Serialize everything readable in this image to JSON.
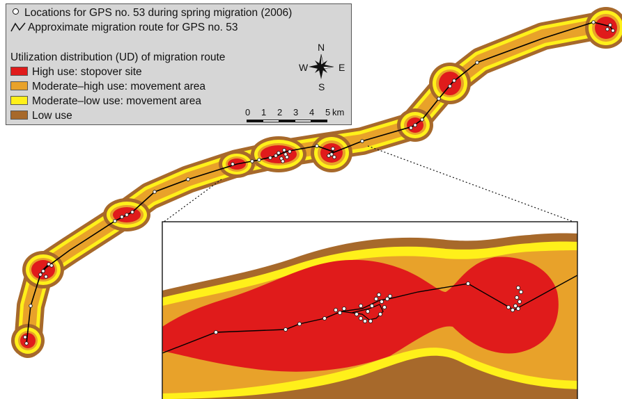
{
  "legend": {
    "locations_label": "Locations for GPS no. 53 during spring migration (2006)",
    "route_label": "Approximate migration route for GPS no. 53",
    "ud_title": "Utilization distribution (UD) of migration route",
    "classes": [
      {
        "label": "High use: stopover site",
        "color": "#e01b1b"
      },
      {
        "label": "Moderate–high use: movement area",
        "color": "#e8a22a"
      },
      {
        "label": "Moderate–low use: movement area",
        "color": "#fff01a"
      },
      {
        "label": "Low use",
        "color": "#a7692b"
      }
    ]
  },
  "compass": {
    "n": "N",
    "s": "S",
    "e": "E",
    "w": "W"
  },
  "scale_bar": {
    "ticks": [
      "0",
      "1",
      "2",
      "3",
      "4",
      "5"
    ],
    "unit": "km"
  },
  "colors": {
    "high_use": "#e01b1b",
    "moderate_high_use": "#e8a22a",
    "moderate_low_use": "#fff01a",
    "low_use": "#a7692b",
    "route": "#000000",
    "points": "#ffffff",
    "legend_bg": "#d6d6d6"
  },
  "icons": [
    "north-arrow-compass-icon",
    "gps-location-point-icon",
    "route-line-icon"
  ]
}
